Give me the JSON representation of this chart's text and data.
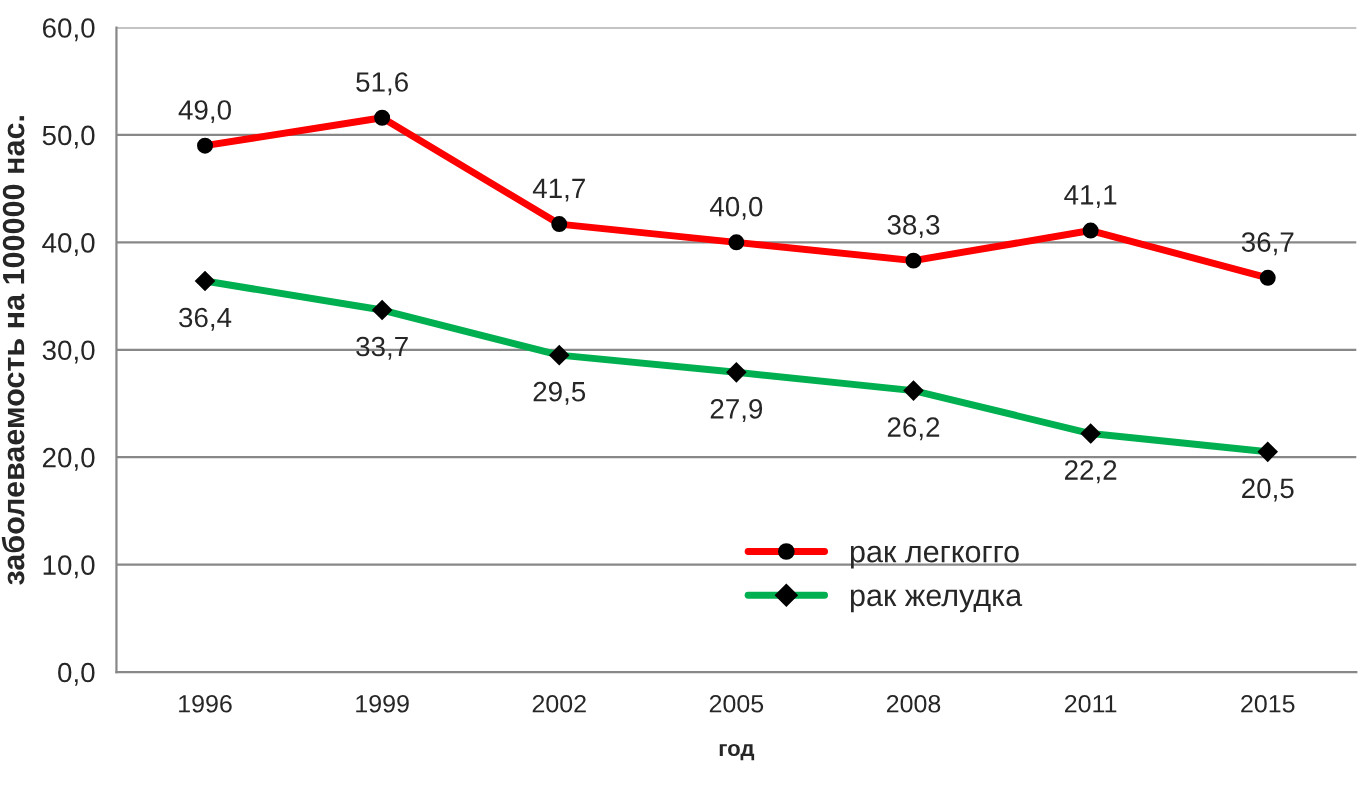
{
  "chart_data": {
    "type": "line",
    "xlabel": "год",
    "ylabel": "заболеваемость на 100000 нас.",
    "categories": [
      "1996",
      "1999",
      "2002",
      "2005",
      "2008",
      "2011",
      "2015"
    ],
    "series": [
      {
        "name": "рак легкогго",
        "color": "#ff0000",
        "marker": "circle",
        "values": [
          49.0,
          51.6,
          41.7,
          40.0,
          38.3,
          41.1,
          36.7
        ],
        "value_labels": [
          "49,0",
          "51,6",
          "41,7",
          "40,0",
          "38,3",
          "41,1",
          "36,7"
        ]
      },
      {
        "name": "рак желудка",
        "color": "#00b050",
        "marker": "diamond",
        "values": [
          36.4,
          33.7,
          29.5,
          27.9,
          26.2,
          22.2,
          20.5
        ],
        "value_labels": [
          "36,4",
          "33,7",
          "29,5",
          "27,9",
          "26,2",
          "22,2",
          "20,5"
        ]
      }
    ],
    "ylim": [
      0,
      60
    ],
    "yticks": [
      {
        "value": 0,
        "label": "0,0"
      },
      {
        "value": 10,
        "label": "10,0"
      },
      {
        "value": 20,
        "label": "20,0"
      },
      {
        "value": 30,
        "label": "30,0"
      },
      {
        "value": 40,
        "label": "40,0"
      },
      {
        "value": 50,
        "label": "50,0"
      },
      {
        "value": 60,
        "label": "60,0"
      }
    ],
    "grid": "y",
    "legend": "bottom"
  }
}
